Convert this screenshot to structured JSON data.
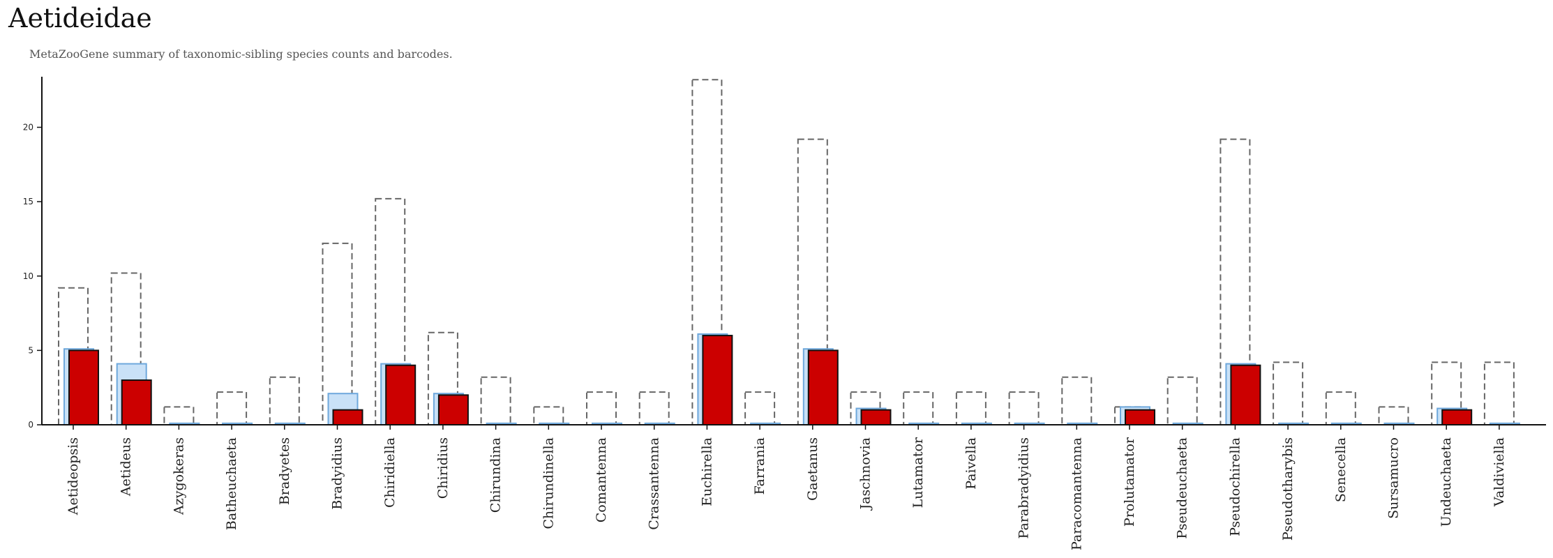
{
  "page": {
    "title": "Aetideidae",
    "subtitle": "MetaZooGene summary of taxonomic-sibling species counts and barcodes."
  },
  "colors": {
    "sibling_outline": "#666666",
    "species_fill": "#c9e1f7",
    "species_stroke": "#6ea8dc",
    "barcode_fill": "#cc0000",
    "barcode_stroke": "#111111",
    "axis": "#111111"
  },
  "chart_data": {
    "type": "bar",
    "title": "Aetideidae",
    "subtitle": "MetaZooGene summary of taxonomic-sibling species counts and barcodes.",
    "xlabel": "",
    "ylabel": "",
    "ylim": [
      0,
      23.4
    ],
    "yticks": [
      0,
      5,
      10,
      15,
      20
    ],
    "grid": false,
    "categories": [
      "Aetideopsis",
      "Aetideus",
      "Azygokeras",
      "Batheuchaeta",
      "Bradyetes",
      "Bradyidius",
      "Chiridiella",
      "Chiridius",
      "Chirundina",
      "Chirundinella",
      "Comantenna",
      "Crassantenna",
      "Euchirella",
      "Farrania",
      "Gaetanus",
      "Jaschnovia",
      "Lutamator",
      "Paivella",
      "Parabradyidius",
      "Paracomantenna",
      "Prolutamator",
      "Pseudeuchaeta",
      "Pseudochirella",
      "Pseudotharybis",
      "Senecella",
      "Sursamucro",
      "Undeuchaeta",
      "Valdiviella"
    ],
    "series": [
      {
        "values": [
          9.2,
          10.2,
          1.2,
          2.2,
          3.2,
          12.2,
          15.2,
          6.2,
          3.2,
          1.2,
          2.2,
          2.2,
          23.2,
          2.2,
          19.2,
          2.2,
          2.2,
          2.2,
          2.2,
          3.2,
          1.2,
          3.2,
          19.2,
          4.2,
          2.2,
          1.2,
          4.2,
          4.2
        ]
      },
      {
        "values": [
          5.1,
          4.1,
          0.1,
          0.1,
          0.1,
          2.1,
          4.1,
          2.1,
          0.1,
          0.1,
          0.1,
          0.1,
          6.1,
          0.1,
          5.1,
          1.1,
          0.1,
          0.1,
          0.1,
          0.1,
          1.2,
          0.1,
          4.1,
          0.1,
          0.1,
          0.1,
          1.1,
          0.1
        ]
      },
      {
        "values": [
          5,
          3,
          0,
          0,
          0,
          1,
          4,
          2,
          0,
          0,
          0,
          0,
          6,
          0,
          5,
          1,
          0,
          0,
          0,
          0,
          1,
          0,
          4,
          0,
          0,
          0,
          1,
          0
        ]
      }
    ]
  }
}
